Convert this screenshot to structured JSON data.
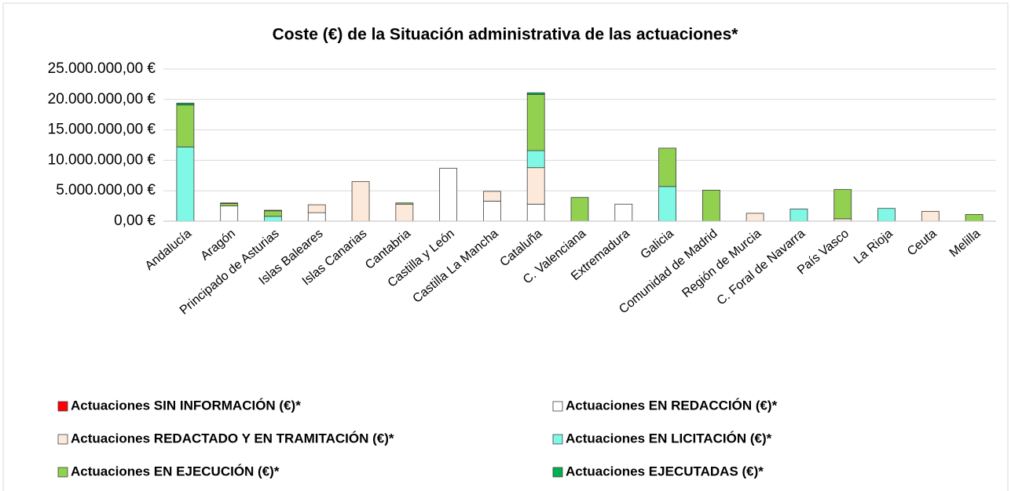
{
  "chart_data": {
    "type": "stacked_bar",
    "title": "Coste (€) de la Situación administrativa de las actuaciones*",
    "categories": [
      "Andalucía",
      "Aragón",
      "Principado de Asturias",
      "Islas Baleares",
      "Islas Canarias",
      "Cantabria",
      "Castilla y León",
      "Castilla La Mancha",
      "Cataluña",
      "C. Valenciana",
      "Extremadura",
      "Galicia",
      "Comunidad de Madrid",
      "Región de Murcia",
      "C. Foral de Navarra",
      "País Vasco",
      "La Rioja",
      "Ceuta",
      "Melilla"
    ],
    "series": [
      {
        "name": "Actuaciones SIN INFORMACIÓN (€)*",
        "color": "#ff0000",
        "values": [
          0,
          0,
          0,
          0,
          0,
          0,
          0,
          0,
          0,
          0,
          0,
          0,
          0,
          0,
          0,
          0,
          0,
          0,
          0
        ]
      },
      {
        "name": "Actuaciones EN REDACCIÓN (€)*",
        "color": "#ffffff",
        "values": [
          0,
          2500000,
          0,
          1400000,
          0,
          0,
          8700000,
          3300000,
          2800000,
          0,
          2800000,
          0,
          0,
          0,
          0,
          0,
          0,
          0,
          0
        ]
      },
      {
        "name": "Actuaciones REDACTADO Y EN TRAMITACIÓN (€)*",
        "color": "#fde9d9",
        "values": [
          0,
          0,
          0,
          1300000,
          6500000,
          2800000,
          0,
          1600000,
          6000000,
          0,
          0,
          0,
          0,
          1300000,
          0,
          400000,
          0,
          1600000,
          0
        ]
      },
      {
        "name": "Actuaciones EN LICITACIÓN (€)*",
        "color": "#7ff9e6",
        "values": [
          12200000,
          0,
          800000,
          0,
          0,
          0,
          0,
          0,
          2800000,
          0,
          0,
          5700000,
          0,
          0,
          2000000,
          0,
          2100000,
          0,
          0
        ]
      },
      {
        "name": "Actuaciones EN EJECUCIÓN (€)*",
        "color": "#92d050",
        "values": [
          6900000,
          400000,
          900000,
          0,
          0,
          200000,
          0,
          0,
          9200000,
          3900000,
          0,
          6300000,
          5100000,
          0,
          0,
          4800000,
          0,
          0,
          1100000
        ]
      },
      {
        "name": "Actuaciones EJECUTADAS (€)*",
        "color": "#00b050",
        "values": [
          300000,
          100000,
          100000,
          0,
          0,
          0,
          0,
          0,
          300000,
          0,
          0,
          0,
          0,
          0,
          0,
          0,
          0,
          0,
          0
        ]
      }
    ],
    "ylim": [
      0,
      25000000
    ],
    "yticks": [
      {
        "value": 0,
        "label": "0,00 €"
      },
      {
        "value": 5000000,
        "label": "5.000.000,00 €"
      },
      {
        "value": 10000000,
        "label": "10.000.000,00 €"
      },
      {
        "value": 15000000,
        "label": "15.000.000,00 €"
      },
      {
        "value": 20000000,
        "label": "20.000.000,00 €"
      },
      {
        "value": 25000000,
        "label": "25.000.000,00 €"
      }
    ],
    "grid": true
  }
}
